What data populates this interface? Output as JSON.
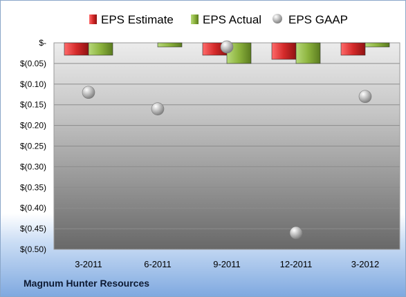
{
  "company": "Magnum Hunter Resources",
  "chart_data": {
    "type": "bar",
    "categories": [
      "3-2011",
      "6-2011",
      "9-2011",
      "12-2011",
      "3-2012"
    ],
    "series": [
      {
        "name": "EPS Estimate",
        "kind": "bar",
        "color": "#d42a2a",
        "values": [
          -0.03,
          0.0,
          -0.03,
          -0.04,
          -0.03
        ]
      },
      {
        "name": "EPS Actual",
        "kind": "bar",
        "color": "#8cb33d",
        "values": [
          -0.03,
          -0.01,
          -0.05,
          -0.05,
          -0.01
        ]
      },
      {
        "name": "EPS GAAP",
        "kind": "scatter",
        "color": "#b8b8b8",
        "values": [
          -0.12,
          -0.16,
          -0.01,
          -0.46,
          -0.13
        ]
      }
    ],
    "yticks": [
      "$-",
      "$(0.05)",
      "$(0.10)",
      "$(0.15)",
      "$(0.20)",
      "$(0.25)",
      "$(0.30)",
      "$(0.35)",
      "$(0.40)",
      "$(0.45)",
      "$(0.50)"
    ],
    "ylim": [
      -0.5,
      0
    ],
    "grid": true,
    "legend": "top"
  }
}
